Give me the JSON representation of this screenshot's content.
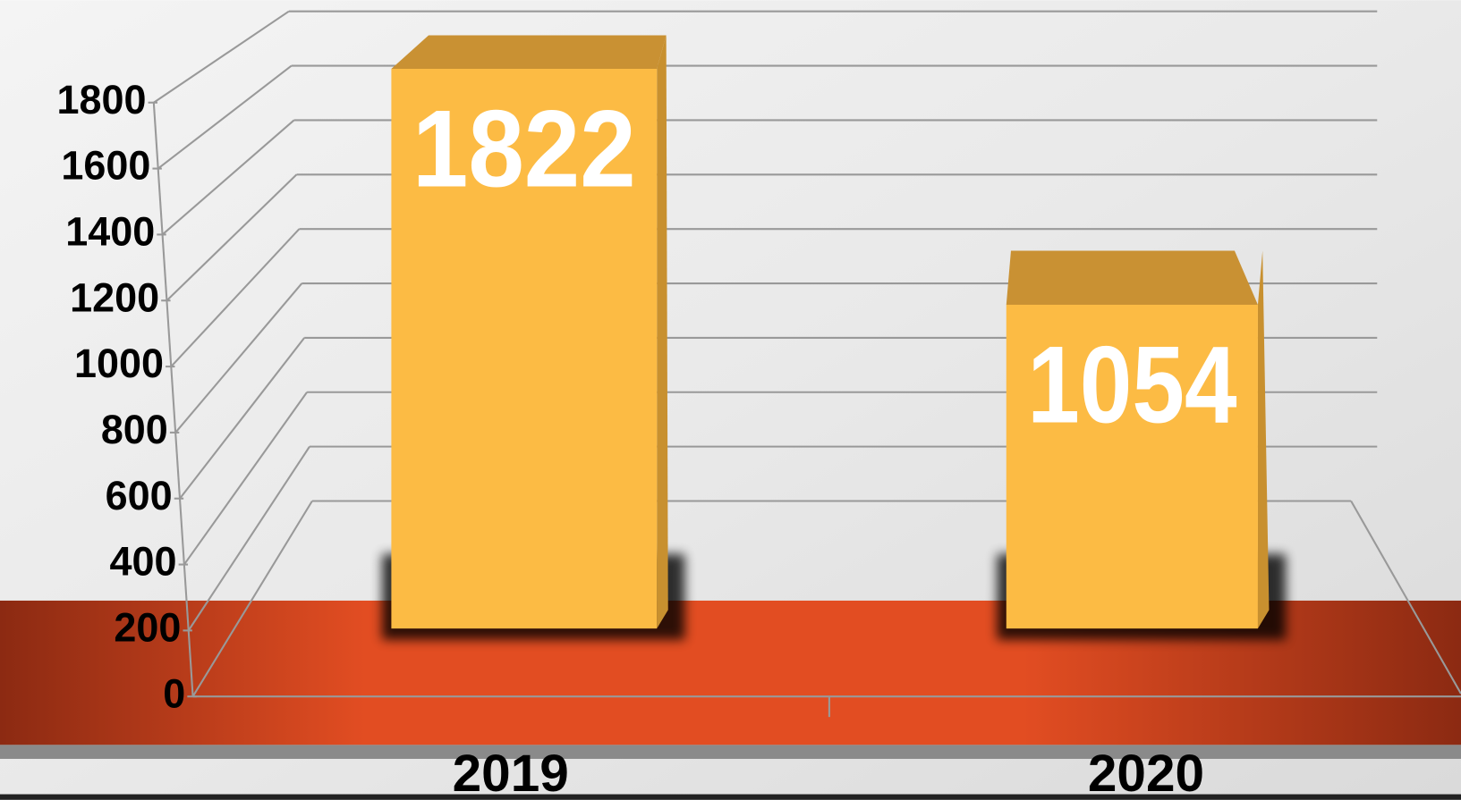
{
  "chart_data": {
    "type": "bar",
    "categories": [
      "2019",
      "2020"
    ],
    "values": [
      1822,
      1054
    ],
    "color": "#fcbb44",
    "ylim": [
      0,
      1800
    ],
    "yticks": [
      0,
      200,
      400,
      600,
      800,
      1000,
      1200,
      1400,
      1600,
      1800
    ],
    "grid": true
  }
}
